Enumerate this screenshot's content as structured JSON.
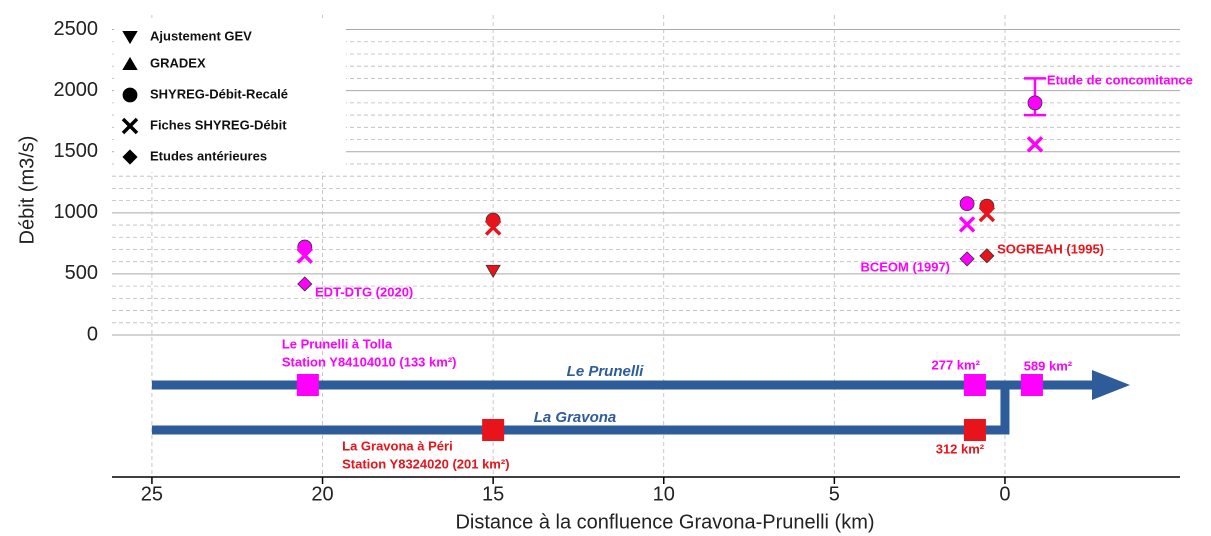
{
  "chart_data": {
    "type": "scatter",
    "y_label": "Débit (m3/s)",
    "x_label": "Distance à la confluence Gravona-Prunelli (km)",
    "xlim": [
      26.17,
      -5.13
    ],
    "xticks": [
      25,
      20,
      15,
      10,
      5,
      0
    ],
    "ylim": [
      -1162,
      2619
    ],
    "yticks": [
      0,
      500,
      1000,
      1500,
      2000,
      2500
    ],
    "grid": true,
    "minor_grid": true,
    "legend": "upper left",
    "series": [
      {
        "name": "Ajustement GEV",
        "marker": "triangle-down",
        "x": [
          15.0
        ],
        "values": [
          525
        ],
        "colors": [
          "#e8141b"
        ]
      },
      {
        "name": "GRADEX",
        "marker": "triangle-up",
        "x": [],
        "values": [],
        "colors": []
      },
      {
        "name": "SHYREG-Débit-Recalé",
        "marker": "circle",
        "x": [
          20.52,
          15.0,
          1.11,
          0.53,
          -0.88
        ],
        "values": [
          720,
          940,
          1075,
          1055,
          1900
        ],
        "colors": [
          "#ff00ff",
          "#e8141b",
          "#ff00ff",
          "#e8141b",
          "#ff00ff"
        ]
      },
      {
        "name": "Fiches SHYREG-Débit",
        "marker": "x",
        "x": [
          20.52,
          15.0,
          1.11,
          0.53,
          -0.88
        ],
        "values": [
          650,
          880,
          905,
          990,
          1560
        ],
        "colors": [
          "#ff00ff",
          "#e8141b",
          "#ff00ff",
          "#e8141b",
          "#ff00ff"
        ]
      },
      {
        "name": "Etudes antérieures",
        "marker": "diamond",
        "x": [
          20.52,
          1.11,
          0.53
        ],
        "values": [
          418,
          623,
          648
        ],
        "colors": [
          "#ff00ff",
          "#ff00ff",
          "#e8141b"
        ]
      }
    ],
    "error_bars": [
      {
        "x": -0.88,
        "low": 1800,
        "high": 2100,
        "color": "#ff00ff"
      }
    ],
    "annotations": [
      {
        "text": "EDT-DTG (2020)",
        "x": 20.22,
        "y": 344,
        "color": "#ff00ff",
        "ha": "start"
      },
      {
        "text": "BCEOM (1997)",
        "x": 1.61,
        "y": 548,
        "color": "#ff00ff",
        "ha": "end"
      },
      {
        "text": "SOGREAH (1995)",
        "x": 0.23,
        "y": 696,
        "color": "#e8141b",
        "ha": "start"
      },
      {
        "text": "Etude de concomitance",
        "x": -1.23,
        "y": 2079,
        "color": "#ff00ff",
        "ha": "start"
      }
    ],
    "diagram": {
      "rivers": [
        "Le Prunelli",
        "La Gravona"
      ],
      "stations": [
        {
          "x": 20.43,
          "river": 0,
          "color": "#ff00ff",
          "label": [
            "Le Prunelli à Tolla",
            "Station Y84104010 (133 km²)"
          ]
        },
        {
          "x": 15.0,
          "river": 1,
          "color": "#e8141b",
          "label": [
            "La Gravona à Péri",
            "Station Y8324020 (201 km²)"
          ]
        },
        {
          "x": 0.88,
          "river": 0,
          "color": "#ff00ff",
          "label": [
            "277 km²"
          ]
        },
        {
          "x": 0.88,
          "river": 1,
          "color": "#e8141b",
          "label": [
            "312 km²"
          ]
        },
        {
          "x": -0.79,
          "river": 0,
          "color": "#ff00ff",
          "label": [
            "589 km²"
          ]
        }
      ]
    }
  }
}
